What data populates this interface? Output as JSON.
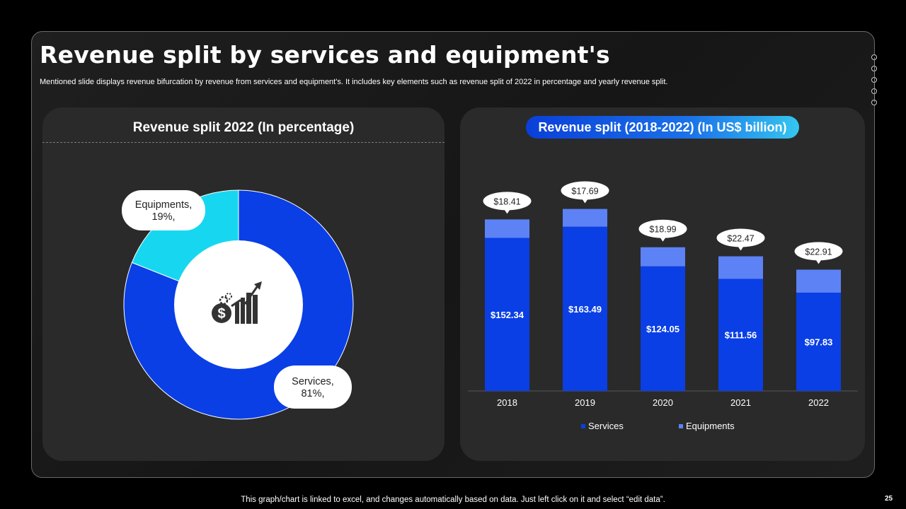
{
  "slide": {
    "title": "Revenue split by services and equipment's",
    "subtitle": "Mentioned slide displays revenue bifurcation by revenue from services and equipment's. It includes key elements such as revenue split of 2022 in percentage and yearly revenue split.",
    "footer": "This graph/chart is linked to excel, and changes automatically based on data. Just left click on it and select “edit data”.",
    "page_number": "25"
  },
  "left_panel": {
    "heading": "Revenue split 2022 (In percentage)"
  },
  "right_panel": {
    "heading": "Revenue split (2018-2022) (In US$ billion)"
  },
  "icons": {
    "center": "money-growth-icon"
  },
  "colors": {
    "services": "#0a3fe6",
    "equipments": "#5c82f5",
    "equipments_pie": "#17d7f0",
    "panel": "#2a2a2a"
  },
  "chart_data": [
    {
      "type": "pie",
      "title": "Revenue split 2022 (In percentage)",
      "slices": [
        {
          "label": "Services",
          "value": 81,
          "label_text": "Services,",
          "value_text": "81%,"
        },
        {
          "label": "Equipments",
          "value": 19,
          "label_text": "Equipments,",
          "value_text": "19%,"
        }
      ]
    },
    {
      "type": "bar",
      "stacked": true,
      "title": "Revenue split (2018-2022) (In US$ billion)",
      "categories": [
        "2018",
        "2019",
        "2020",
        "2021",
        "2022"
      ],
      "series": [
        {
          "name": "Services",
          "values": [
            152.34,
            163.49,
            124.05,
            111.56,
            97.83
          ],
          "labels": [
            "$152.34",
            "$163.49",
            "$124.05",
            "$111.56",
            "$97.83"
          ]
        },
        {
          "name": "Equipments",
          "values": [
            18.41,
            17.69,
            18.99,
            22.47,
            22.91
          ],
          "labels": [
            "$18.41",
            "$17.69",
            "$18.99",
            "$22.47",
            "$22.91"
          ]
        }
      ],
      "ylim": [
        0,
        190
      ],
      "legend": "bottom"
    }
  ]
}
